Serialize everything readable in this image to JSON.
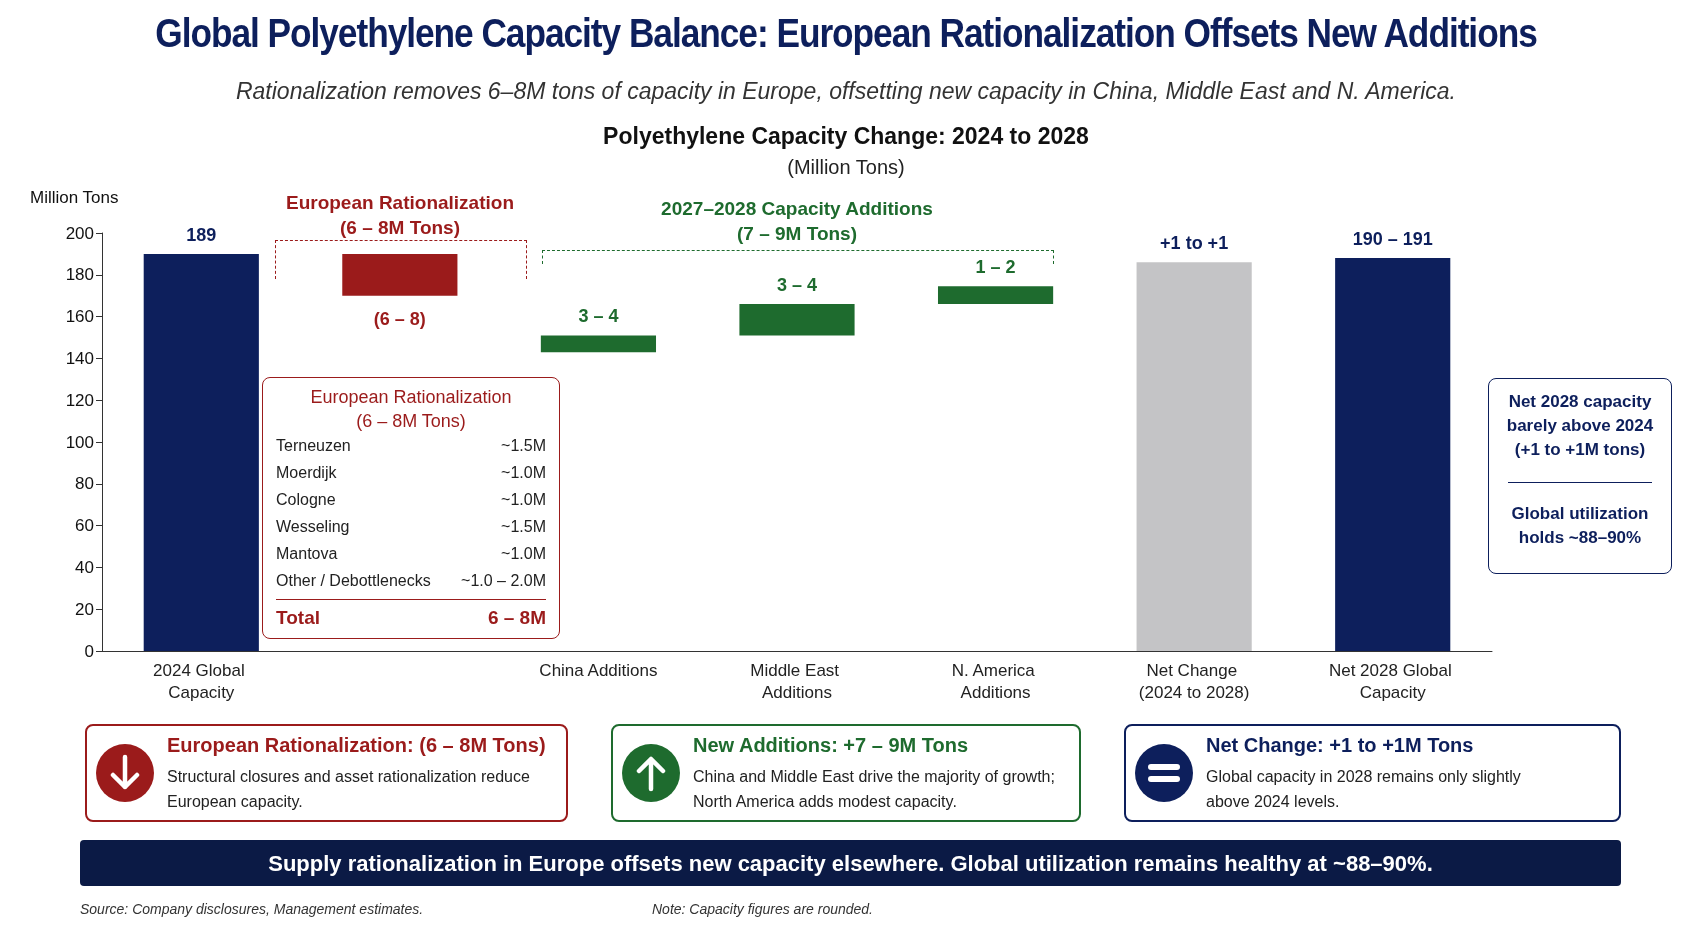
{
  "chart_data": {
    "type": "bar",
    "title": "Global Polyethylene Capacity Balance: European Rationalization Offsets New Additions",
    "subtitle": "Rationalization removes 6–8M tons of capacity in Europe, offsetting new capacity in China, Middle East and N. America.",
    "ylabel": "Million Tons",
    "categories": [
      "2024 Global Capacity",
      null,
      "China Additions",
      "Middle East Additions",
      "N. America Additions",
      "Net Change (2024 to 2028)",
      "Net 2028 Global Capacity"
    ],
    "values": [
      190,
      -20,
      8,
      15,
      8.5,
      186,
      188
    ],
    "base": [
      0,
      190,
      143,
      151,
      166,
      0,
      0
    ],
    "colors": [
      "#0d1f5c",
      "#9b1b1b",
      "#1e6b2e",
      "#1e6b2e",
      "#1e6b2e",
      "#c4c4c6",
      "#0d1f5c"
    ],
    "ylim": [
      0,
      200
    ],
    "yticks": [
      0,
      20,
      40,
      60,
      80,
      100,
      120,
      140,
      160,
      180,
      200
    ],
    "annotations": [
      {
        "text": "189",
        "x": "2024 Global Capacity",
        "y": 190
      },
      {
        "text": "(6 – 8)",
        "y": 170
      },
      {
        "text": "3 – 4",
        "x": "China Additions",
        "y": 151
      },
      {
        "text": "3 – 4",
        "x": "Middle East Additions",
        "y": 166
      },
      {
        "text": "1 – 2",
        "x": "N. America Additions",
        "y": 174.5
      },
      {
        "text": "+1 to +1",
        "x": "Net Change (2024 to 2028)",
        "y": 186
      },
      {
        "text": "190 – 191",
        "x": "Net 2028 Global Capacity",
        "y": 188
      },
      "European Rationalization\n(6 – 8M Tons)",
      "2027–2028 Capacity Additions\n(7 – 9M Tons)",
      "Polyethylene Capacity Change: 2024 to 2028",
      "(Million Tons)",
      "European Rationalization\n(6 – 8M Tons)",
      "Terneuzen",
      "~1.5M",
      "Moerdijk",
      "~1.0M",
      "Cologne",
      "~1.0M",
      "Wesseling",
      "~1.5M",
      "Mantova",
      "~1.0M",
      "Other / Debottlenecks",
      "~1.0 – 2.0M",
      "Total",
      "6 – 8M",
      "Net 2028 capacity\nbarely above 2024\n(+1 to +1M tons)",
      "Global utilization\nholds ~88–90%",
      "European Rationalization: (6 – 8M Tons)",
      "Structural closures and asset rationalization reduce\nEuropean capacity.",
      "New Additions: +7 – 9M Tons",
      "China and Middle East drive the majority of growth;\nNorth America adds modest capacity.",
      "Net Change: +1 to +1M Tons",
      "Global capacity in 2028 remains only slightly\nabove 2024 levels.",
      "Supply rationalization in Europe offsets new capacity elsewhere. Global utilization remains healthy at ~88–90%.",
      "Source:  Company disclosures, Management estimates.",
      "Note: Capacity figures are rounded."
    ]
  }
}
